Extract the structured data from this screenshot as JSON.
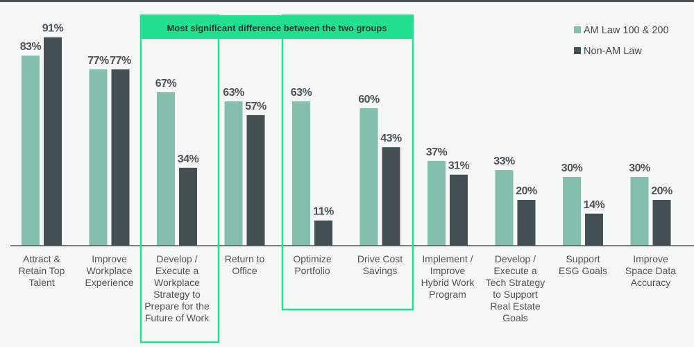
{
  "chart_data": {
    "type": "bar",
    "categories": [
      [
        "Attract &",
        "Retain Top",
        "Talent"
      ],
      [
        "Improve",
        "Workplace",
        "Experience"
      ],
      [
        "Develop /",
        "Execute a",
        "Workplace",
        "Strategy to",
        "Prepare for the",
        "Future of Work"
      ],
      [
        "Return to",
        "Office"
      ],
      [
        "Optimize",
        "Portfolio"
      ],
      [
        "Drive Cost",
        "Savings"
      ],
      [
        "Implement /",
        "Improve",
        "Hybrid Work",
        "Program"
      ],
      [
        "Develop /",
        "Execute a",
        "Tech Strategy",
        "to Support",
        "Real Estate",
        "Goals"
      ],
      [
        "Support",
        "ESG Goals"
      ],
      [
        "Improve",
        "Space Data",
        "Accuracy"
      ]
    ],
    "series": [
      {
        "name": "AM Law 100 & 200",
        "color": "#84bfae",
        "values": [
          83,
          77,
          67,
          63,
          63,
          60,
          37,
          33,
          30,
          30
        ]
      },
      {
        "name": "Non-AM Law",
        "color": "#434f52",
        "values": [
          91,
          77,
          34,
          57,
          11,
          43,
          31,
          20,
          14,
          20
        ]
      }
    ],
    "value_suffix": "%",
    "ylim": [
      0,
      100
    ],
    "grid": false,
    "legend_position": "top-right",
    "highlight": {
      "label": "Most significant difference between the two groups",
      "color": "#22e08f",
      "category_groups": [
        [
          2
        ],
        [
          4,
          5
        ]
      ]
    }
  }
}
